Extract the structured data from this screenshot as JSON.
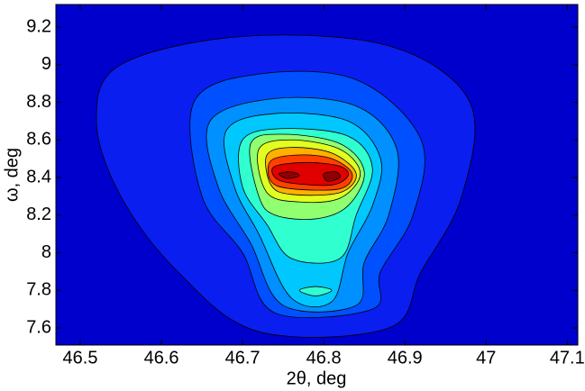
{
  "chart_data": {
    "type": "contour",
    "xlabel": "2θ, deg",
    "ylabel": "ω, deg",
    "xlim": [
      46.47,
      47.113
    ],
    "ylim": [
      7.509,
      9.32
    ],
    "xticks": [
      46.5,
      46.6,
      46.7,
      46.8,
      46.9,
      47,
      47.1
    ],
    "yticks": [
      7.6,
      7.8,
      8,
      8.2,
      8.4,
      8.6,
      8.8,
      9,
      9.2
    ],
    "background": "#0000cd",
    "contours": [
      {
        "color": "#0a1ef0",
        "x": [
          46.55,
          46.7,
          46.88,
          46.98,
          46.97,
          46.92,
          46.88,
          46.72,
          46.62,
          46.55,
          46.52
        ],
        "y": [
          9.0,
          9.15,
          9.1,
          8.8,
          8.3,
          7.9,
          7.6,
          7.58,
          7.9,
          8.3,
          8.7
        ]
      },
      {
        "color": "#0050ff",
        "x": [
          46.64,
          46.72,
          46.84,
          46.92,
          46.91,
          46.87,
          46.86,
          46.74,
          46.7,
          46.65
        ],
        "y": [
          8.8,
          8.95,
          8.92,
          8.6,
          8.2,
          7.9,
          7.7,
          7.68,
          8.0,
          8.3
        ]
      },
      {
        "color": "#0090ff",
        "x": [
          46.66,
          46.74,
          46.84,
          46.89,
          46.88,
          46.85,
          46.84,
          46.75,
          46.71,
          46.67
        ],
        "y": [
          8.7,
          8.82,
          8.78,
          8.55,
          8.2,
          7.95,
          7.72,
          7.72,
          8.05,
          8.35
        ]
      },
      {
        "color": "#00c8ff",
        "x": [
          46.68,
          46.74,
          46.83,
          46.87,
          46.86,
          46.83,
          46.81,
          46.76,
          46.72,
          46.69
        ],
        "y": [
          8.65,
          8.74,
          8.7,
          8.5,
          8.25,
          8.0,
          7.74,
          7.76,
          8.1,
          8.35
        ]
      },
      {
        "color": "#30ffd0",
        "x": [
          46.7,
          46.75,
          46.83,
          46.86,
          46.84,
          46.82,
          46.76,
          46.73,
          46.7
        ],
        "y": [
          8.6,
          8.66,
          8.62,
          8.45,
          8.2,
          7.97,
          7.97,
          8.15,
          8.35
        ]
      },
      {
        "color": "#90ff70",
        "x": [
          46.71,
          46.75,
          46.82,
          46.85,
          46.83,
          46.79,
          46.74,
          46.72
        ],
        "y": [
          8.58,
          8.63,
          8.58,
          8.43,
          8.25,
          8.18,
          8.2,
          8.3
        ]
      },
      {
        "color": "#e0ff20",
        "x": [
          46.72,
          46.76,
          46.82,
          46.845,
          46.82,
          46.77,
          46.73
        ],
        "y": [
          8.55,
          8.6,
          8.55,
          8.42,
          8.29,
          8.27,
          8.32
        ]
      },
      {
        "color": "#ffb000",
        "x": [
          46.73,
          46.76,
          46.81,
          46.84,
          46.82,
          46.76,
          46.735
        ],
        "y": [
          8.52,
          8.56,
          8.53,
          8.42,
          8.32,
          8.31,
          8.36
        ]
      },
      {
        "color": "#ff4000",
        "x": [
          46.735,
          46.77,
          46.81,
          46.835,
          46.82,
          46.76,
          46.735
        ],
        "y": [
          8.49,
          8.52,
          8.5,
          8.42,
          8.34,
          8.34,
          8.38
        ]
      },
      {
        "color": "#e00000",
        "x": [
          46.74,
          46.78,
          46.82,
          46.83,
          46.81,
          46.76,
          46.74
        ],
        "y": [
          8.46,
          8.48,
          8.46,
          8.41,
          8.36,
          8.37,
          8.4
        ]
      },
      {
        "color": "#900000",
        "x": [
          46.745,
          46.76,
          46.77,
          46.755
        ],
        "y": [
          8.42,
          8.43,
          8.41,
          8.395
        ]
      },
      {
        "color": "#900000",
        "x": [
          46.8,
          46.815,
          46.82,
          46.805
        ],
        "y": [
          8.42,
          8.43,
          8.4,
          8.38
        ]
      },
      {
        "color": "#30ffd0",
        "x": [
          46.77,
          46.79,
          46.81,
          46.79
        ],
        "y": [
          7.8,
          7.82,
          7.8,
          7.77
        ]
      }
    ]
  }
}
